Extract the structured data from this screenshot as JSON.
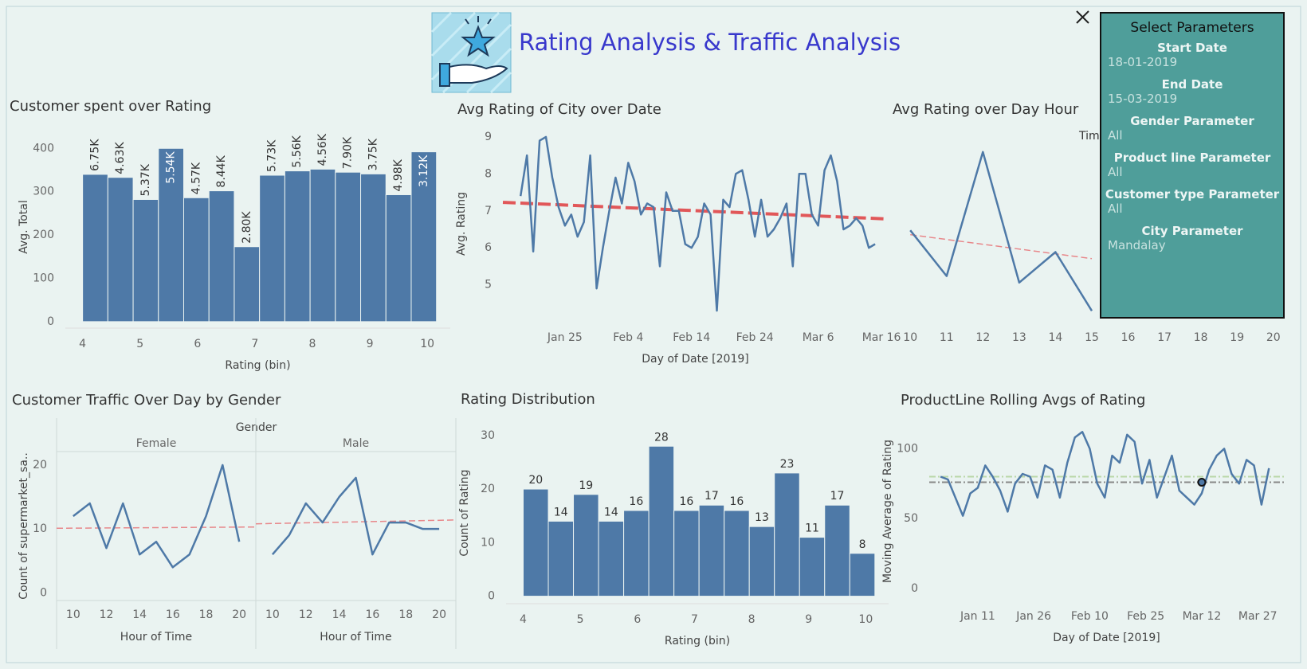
{
  "header": {
    "title": "Rating Analysis & Traffic Analysis"
  },
  "parameters": {
    "title": "Select Parameters",
    "items": [
      {
        "label": "Start Date",
        "value": "18-01-2019"
      },
      {
        "label": "End Date",
        "value": "15-03-2019"
      },
      {
        "label": "Gender Parameter",
        "value": "All"
      },
      {
        "label": "Product line Parameter",
        "value": "All"
      },
      {
        "label": "Customer type Parameter",
        "value": "All"
      },
      {
        "label": "City Parameter",
        "value": "Mandalay"
      }
    ]
  },
  "chart_data": [
    {
      "type": "histogram",
      "title": "Customer spent over Rating",
      "x_label": "Rating (bin)",
      "y_label": "Avg. Total",
      "color": "#4e79a7",
      "bins": [
        4,
        4.44,
        4.88,
        5.32,
        5.76,
        6.2,
        6.64,
        7.08,
        7.52,
        7.96,
        8.4,
        8.84,
        9.28,
        9.72,
        10.16
      ],
      "values": [
        340,
        333,
        282,
        400,
        286,
        302,
        173,
        338,
        348,
        352,
        345,
        341,
        293,
        392
      ],
      "bar_labels": [
        "6.75K",
        "4.63K",
        "5.37K",
        "5.54K",
        "4.57K",
        "8.44K",
        "2.80K",
        "5.73K",
        "5.56K",
        "4.56K",
        "7.90K",
        "3.75K",
        "4.98K",
        "3.12K"
      ],
      "xlim": [
        3.7,
        10.4
      ],
      "xticks": [
        4,
        5,
        6,
        7,
        8,
        9,
        10
      ],
      "ylim": [
        -15,
        452
      ],
      "yticks": [
        0,
        100,
        200,
        300,
        400
      ]
    },
    {
      "type": "line",
      "title": "Avg Rating of City over Date",
      "x_label": "Day of Date [2019]",
      "y_label": "Avg. Rating",
      "color": "#4e79a7",
      "x": [
        18,
        19,
        20,
        21,
        22,
        23,
        24,
        25,
        26,
        27,
        28,
        29,
        30,
        31,
        32,
        33,
        34,
        35,
        36,
        37,
        38,
        39,
        40,
        41,
        42,
        43,
        44,
        45,
        46,
        47,
        48,
        49,
        50,
        51,
        52,
        53,
        54,
        55,
        56,
        57,
        58,
        59,
        60,
        61,
        62,
        63,
        64,
        65,
        66,
        67,
        68,
        69,
        70,
        71,
        72,
        73,
        74
      ],
      "values": [
        7.4,
        8.5,
        5.9,
        8.9,
        9.0,
        7.9,
        7.1,
        6.6,
        6.9,
        6.3,
        6.7,
        8.5,
        4.9,
        6.0,
        7.0,
        7.9,
        7.2,
        8.3,
        7.8,
        6.9,
        7.2,
        7.1,
        5.5,
        7.5,
        7.0,
        7.0,
        6.1,
        6.0,
        6.3,
        7.2,
        6.9,
        4.3,
        7.3,
        7.1,
        8.0,
        8.1,
        7.3,
        6.3,
        7.3,
        6.3,
        6.5,
        6.8,
        7.2,
        5.5,
        8.0,
        8.0,
        6.9,
        6.6,
        8.1,
        8.5,
        7.8,
        6.5,
        6.6,
        6.8,
        6.6,
        6.0,
        6.1
      ],
      "trend": {
        "x": [
          15.2,
          76
        ],
        "values": [
          7.23,
          6.78
        ],
        "color": "#e15759",
        "width": 4
      },
      "xlim": [
        15.2,
        76
      ],
      "xticks": [
        {
          "value": 25,
          "label": "Jan 25"
        },
        {
          "value": 35,
          "label": "Feb 4"
        },
        {
          "value": 45,
          "label": "Feb 14"
        },
        {
          "value": 55,
          "label": "Feb 24"
        },
        {
          "value": 65,
          "label": "Mar 6"
        },
        {
          "value": 75,
          "label": "Mar 16"
        }
      ],
      "ylim": [
        4,
        9.3
      ],
      "yticks": [
        5,
        6,
        7,
        8,
        9
      ]
    },
    {
      "type": "line",
      "title": "Avg Rating over Day Hour",
      "legend_title": "Tim",
      "color": "#4e79a7",
      "x": [
        10,
        11,
        12,
        13,
        14,
        15,
        16,
        17,
        18,
        19,
        20
      ],
      "values": [
        6.92,
        6.71,
        7.28,
        6.68,
        6.82,
        6.55,
        null,
        null,
        null,
        null,
        null
      ],
      "trend": {
        "x": [
          10,
          15
        ],
        "values": [
          6.9,
          6.79
        ],
        "color": "#e8878a",
        "width": 1.5
      },
      "xlim": [
        9.6,
        20.4
      ],
      "xticks": [
        10,
        11,
        12,
        13,
        14,
        15,
        16,
        17,
        18,
        19,
        20
      ],
      "ylim": [
        6.5,
        7.4
      ]
    },
    {
      "type": "facet-line",
      "title": "Customer Traffic Over Day by Gender",
      "facet_title": "Gender",
      "x_label": "Hour of Time",
      "y_label": "Count of supermarket_sa..",
      "color": "#4e79a7",
      "x": [
        10,
        11,
        12,
        13,
        14,
        15,
        16,
        17,
        18,
        19,
        20
      ],
      "facets": [
        {
          "name": "Female",
          "values": [
            12,
            14,
            7,
            14,
            6,
            8,
            4,
            6,
            12,
            20,
            8
          ],
          "trend": {
            "x": [
              9,
              21
            ],
            "values": [
              10.1,
              10.3
            ]
          }
        },
        {
          "name": "Male",
          "values": [
            6,
            9,
            14,
            11,
            15,
            18,
            6,
            11,
            11,
            10,
            10
          ],
          "trend": {
            "x": [
              9,
              21
            ],
            "values": [
              10.8,
              11.4
            ]
          }
        }
      ],
      "trend_color": "#e8878a",
      "xlim": [
        9,
        21
      ],
      "xticks": [
        10,
        12,
        14,
        16,
        18,
        20
      ],
      "ylim": [
        -1.2,
        22.1
      ],
      "yticks": [
        0,
        10,
        20
      ]
    },
    {
      "type": "histogram",
      "title": "Rating Distribution",
      "x_label": "Rating (bin)",
      "y_label": "Count of Rating",
      "color": "#4e79a7",
      "data_labels": true,
      "bins": [
        4,
        4.44,
        4.88,
        5.32,
        5.76,
        6.2,
        6.64,
        7.08,
        7.52,
        7.96,
        8.4,
        8.84,
        9.28,
        9.72,
        10.16
      ],
      "values": [
        20,
        14,
        19,
        14,
        16,
        28,
        16,
        17,
        16,
        13,
        23,
        11,
        17,
        8
      ],
      "xlim": [
        3.7,
        10.4
      ],
      "xticks": [
        4,
        5,
        6,
        7,
        8,
        9,
        10
      ],
      "ylim": [
        -1.4,
        32.5
      ],
      "yticks": [
        0,
        10,
        20,
        30
      ]
    },
    {
      "type": "line",
      "title": "ProductLine Rolling Avgs of Rating",
      "x_label": "Day of Date [2019]",
      "y_label": "Moving Average of Rating",
      "color": "#4e79a7",
      "x": [
        1,
        3,
        5,
        7,
        9,
        11,
        13,
        15,
        17,
        19,
        21,
        23,
        25,
        27,
        29,
        31,
        33,
        35,
        37,
        39,
        41,
        43,
        45,
        47,
        49,
        51,
        53,
        55,
        57,
        59,
        61,
        63,
        65,
        67,
        69,
        71,
        73,
        75,
        77,
        79,
        81,
        83,
        85,
        87,
        89
      ],
      "values": [
        80,
        78,
        65,
        52,
        68,
        72,
        88,
        80,
        70,
        55,
        75,
        82,
        80,
        65,
        88,
        85,
        65,
        90,
        108,
        112,
        100,
        75,
        65,
        95,
        90,
        110,
        105,
        75,
        92,
        65,
        80,
        95,
        70,
        65,
        60,
        68,
        85,
        95,
        100,
        82,
        75,
        92,
        88,
        60,
        86
      ],
      "ref_lines": [
        {
          "value": 80,
          "color": "#b9d7a8"
        },
        {
          "value": 76,
          "color": "#888888"
        }
      ],
      "highlight": {
        "x": 71,
        "value": 76
      },
      "xlim": [
        -2,
        93
      ],
      "xticks": [
        {
          "value": 11,
          "label": "Jan 11"
        },
        {
          "value": 26,
          "label": "Jan 26"
        },
        {
          "value": 41,
          "label": "Feb 10"
        },
        {
          "value": 56,
          "label": "Feb 25"
        },
        {
          "value": 71,
          "label": "Mar 12"
        },
        {
          "value": 86,
          "label": "Mar 27"
        }
      ],
      "ylim": [
        -8.6,
        119
      ],
      "yticks": [
        0,
        50,
        100
      ]
    }
  ]
}
